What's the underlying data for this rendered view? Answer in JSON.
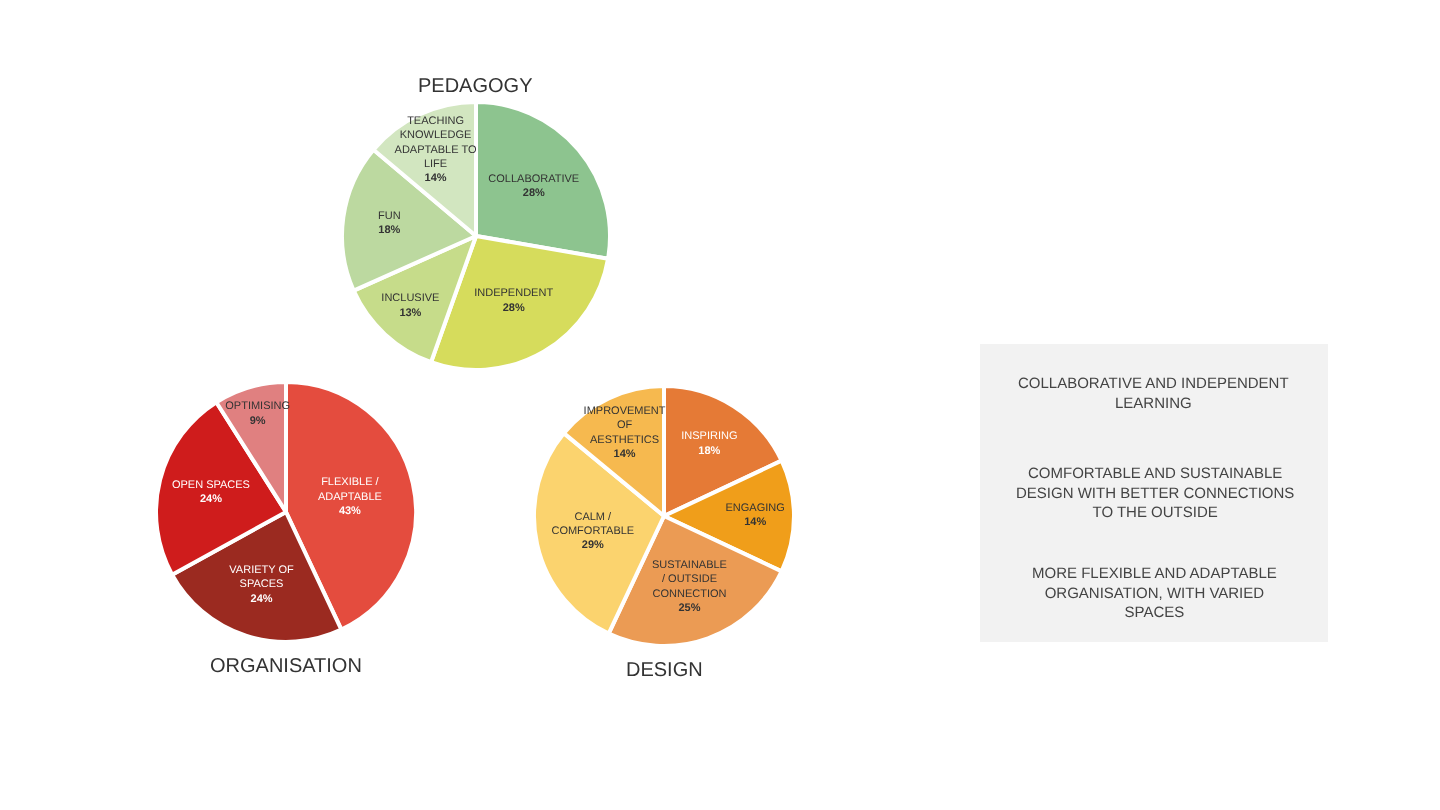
{
  "chart_data": [
    {
      "type": "pie",
      "title": "PEDAGOGY",
      "categories": [
        "COLLABORATIVE",
        "INDEPENDENT",
        "INCLUSIVE",
        "FUN",
        "TEACHING KNOWLEDGE ADAPTABLE TO LIFE"
      ],
      "values": [
        28,
        28,
        13,
        18,
        14
      ],
      "value_labels": [
        "28%",
        "28%",
        "13%",
        "18%",
        "14%"
      ],
      "colors": [
        "#8dc48f",
        "#d6dc5c",
        "#c6dc8a",
        "#bcd9a0",
        "#d2e6c0"
      ]
    },
    {
      "type": "pie",
      "title": "ORGANISATION",
      "categories": [
        "FLEXIBLE / ADAPTABLE",
        "VARIETY OF SPACES",
        "OPEN SPACES",
        "OPTIMISING"
      ],
      "values": [
        43,
        24,
        24,
        9
      ],
      "value_labels": [
        "43%",
        "24%",
        "24%",
        "9%"
      ],
      "colors": [
        "#e44c3e",
        "#9b2a20",
        "#cf1c1c",
        "#e08080"
      ]
    },
    {
      "type": "pie",
      "title": "DESIGN",
      "categories": [
        "INSPIRING",
        "ENGAGING",
        "SUSTAINABLE / OUTSIDE CONNECTION",
        "CALM / COMFORTABLE",
        "IMPROVEMENT OF AESTHETICS"
      ],
      "values": [
        18,
        14,
        25,
        29,
        14
      ],
      "value_labels": [
        "18%",
        "14%",
        "25%",
        "29%",
        "14%"
      ],
      "colors": [
        "#e57a36",
        "#f09e1a",
        "#eb9b54",
        "#fbd36e",
        "#f6b94f"
      ]
    },
    {
      "type": "other",
      "annotations": [
        "COLLABORATIVE AND INDEPENDENT LEARNING",
        "COMFORTABLE AND SUSTAINABLE DESIGN WITH BETTER CONNECTIONS TO THE OUTSIDE",
        "MORE FLEXIBLE AND ADAPTABLE ORGANISATION, WITH VARIED SPACES"
      ]
    }
  ]
}
